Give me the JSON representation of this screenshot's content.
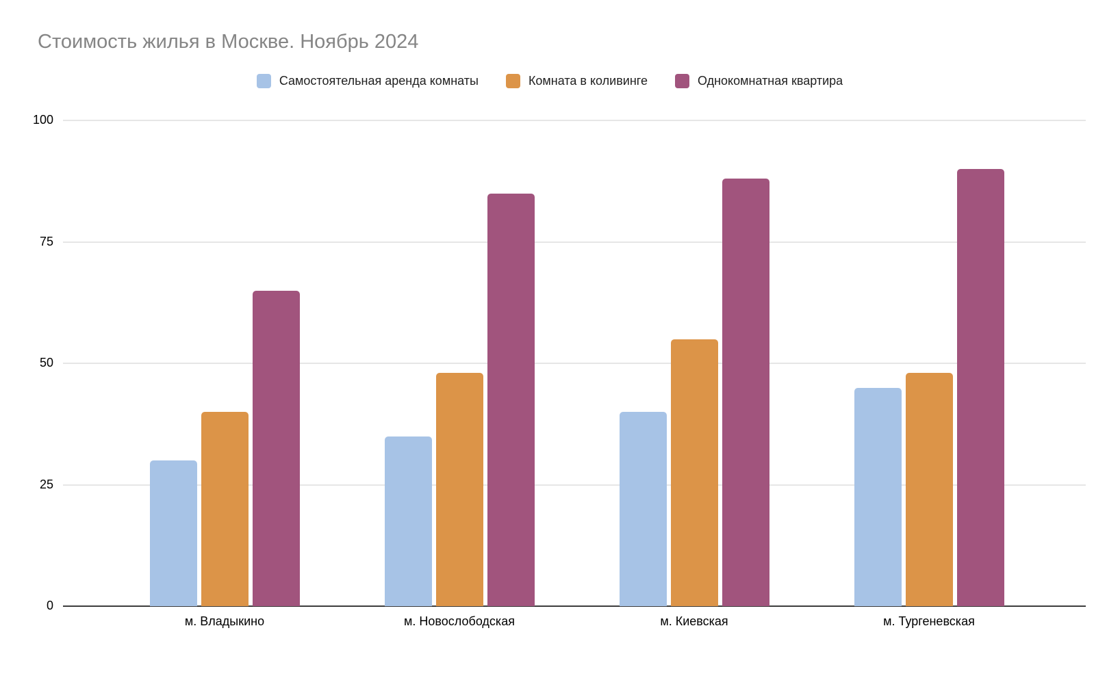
{
  "page": {
    "background": "#ffffff"
  },
  "chart_data": {
    "type": "bar",
    "title": "Стоимость жилья в Москве. Ноябрь 2024",
    "title_color": "#858585",
    "categories": [
      "м. Владыкино",
      "м. Новослободская",
      "м. Киевская",
      "м. Тургеневская"
    ],
    "series": [
      {
        "name": "Самостоятельная аренда комнаты",
        "color": "#a7c3e6",
        "values": [
          30,
          35,
          40,
          45
        ]
      },
      {
        "name": "Комната в коливинге",
        "color": "#dc9448",
        "values": [
          40,
          48,
          55,
          48
        ]
      },
      {
        "name": "Однокомнатная квартира",
        "color": "#a1547d",
        "values": [
          65,
          85,
          88,
          90
        ]
      }
    ],
    "xlabel": "",
    "ylabel": "",
    "ylim": [
      0,
      100
    ],
    "yticks": [
      0,
      25,
      50,
      75,
      100
    ],
    "grid": true,
    "legend_position": "top",
    "gridline_color": "#e6e6e6",
    "axis_line_color": "#3d3d3d",
    "tick_text_color": "#000000"
  }
}
